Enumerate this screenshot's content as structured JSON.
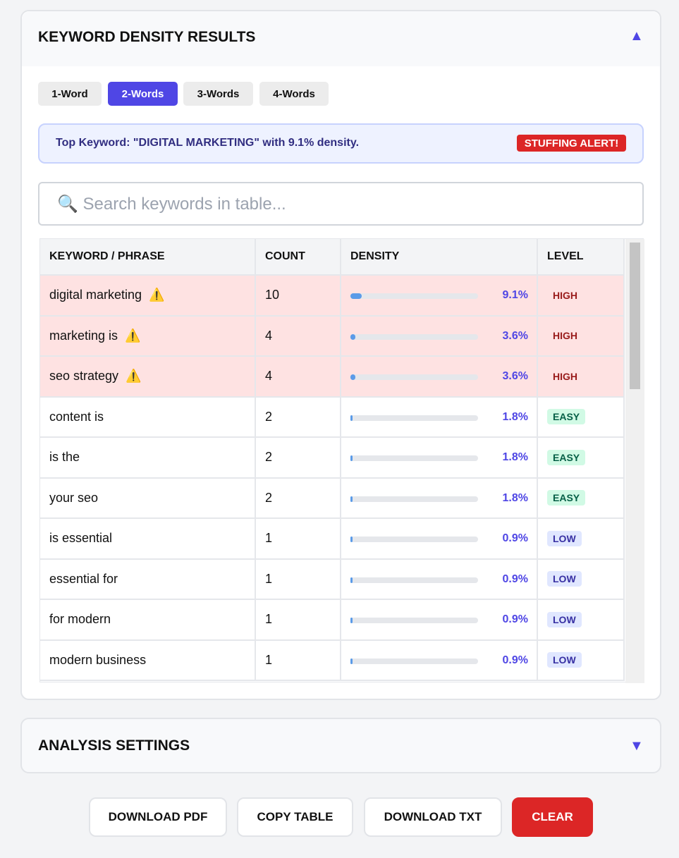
{
  "results": {
    "title": "KEYWORD DENSITY RESULTS",
    "tabs": [
      {
        "label": "1-Word",
        "active": false
      },
      {
        "label": "2-Words",
        "active": true
      },
      {
        "label": "3-Words",
        "active": false
      },
      {
        "label": "4-Words",
        "active": false
      }
    ],
    "summary": "Top Keyword: \"DIGITAL MARKETING\" with 9.1% density.",
    "alert": "STUFFING ALERT!",
    "search_placeholder": "🔍 Search keywords in table...",
    "table": {
      "headers": [
        "KEYWORD / PHRASE",
        "COUNT",
        "DENSITY",
        "LEVEL"
      ],
      "rows": [
        {
          "keyword": "digital marketing",
          "count": "10",
          "density": "9.1%",
          "level": "HIGH",
          "warning": true
        },
        {
          "keyword": "marketing is",
          "count": "4",
          "density": "3.6%",
          "level": "HIGH",
          "warning": true
        },
        {
          "keyword": "seo strategy",
          "count": "4",
          "density": "3.6%",
          "level": "HIGH",
          "warning": true
        },
        {
          "keyword": "content is",
          "count": "2",
          "density": "1.8%",
          "level": "EASY",
          "warning": false
        },
        {
          "keyword": "is the",
          "count": "2",
          "density": "1.8%",
          "level": "EASY",
          "warning": false
        },
        {
          "keyword": "your seo",
          "count": "2",
          "density": "1.8%",
          "level": "EASY",
          "warning": false
        },
        {
          "keyword": "is essential",
          "count": "1",
          "density": "0.9%",
          "level": "LOW",
          "warning": false
        },
        {
          "keyword": "essential for",
          "count": "1",
          "density": "0.9%",
          "level": "LOW",
          "warning": false
        },
        {
          "keyword": "for modern",
          "count": "1",
          "density": "0.9%",
          "level": "LOW",
          "warning": false
        },
        {
          "keyword": "modern business",
          "count": "1",
          "density": "0.9%",
          "level": "LOW",
          "warning": false
        }
      ]
    }
  },
  "settings": {
    "title": "ANALYSIS SETTINGS"
  },
  "buttons": [
    "DOWNLOAD PDF",
    "COPY TABLE",
    "DOWNLOAD TXT",
    "CLEAR"
  ]
}
